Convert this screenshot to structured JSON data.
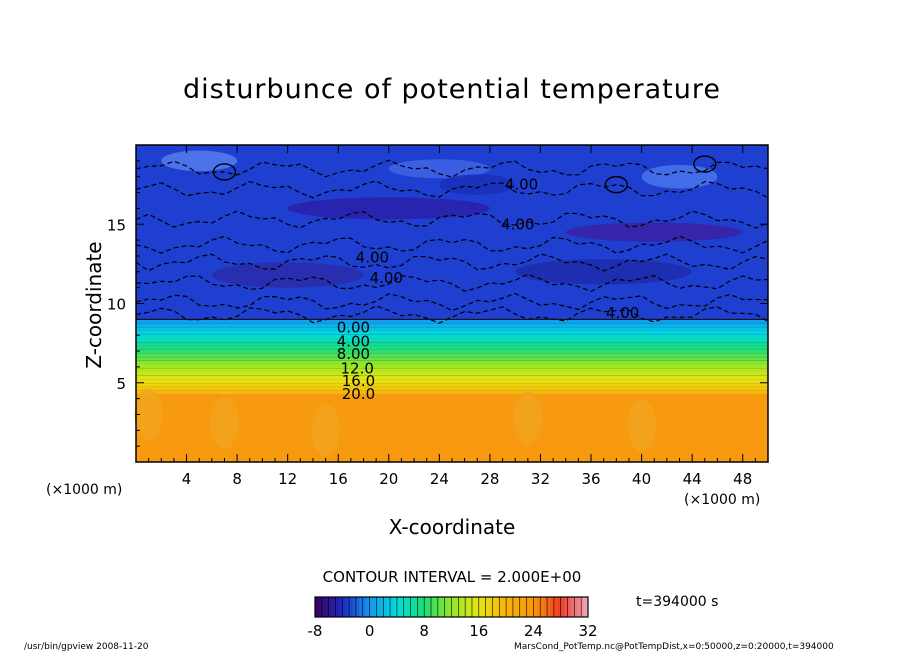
{
  "chart_data": {
    "type": "heatmap",
    "title": "disturbunce of potential temperature",
    "xlabel": "X-coordinate",
    "ylabel": "Z-coordinate",
    "x_unit": "(×1000 m)",
    "y_unit": "(×1000 m)",
    "xlim": [
      0,
      50
    ],
    "ylim": [
      0,
      20
    ],
    "x_ticks": [
      4,
      8,
      12,
      16,
      20,
      24,
      28,
      32,
      36,
      40,
      44,
      48
    ],
    "y_ticks": [
      5,
      10,
      15
    ],
    "contour_interval": "CONTOUR INTERVAL = 2.000E+00",
    "contour_labels": [
      "0.00",
      "4.00",
      "8.00",
      "12.0",
      "16.0",
      "20.0",
      "-4.00"
    ],
    "colorbar": {
      "min": -8,
      "max": 32,
      "ticks": [
        -8,
        0,
        8,
        16,
        24,
        32
      ]
    },
    "layers": [
      {
        "z_top": 20,
        "z_bottom": 9,
        "value": -4
      },
      {
        "z_top": 9,
        "z_bottom": 4.3,
        "value_top": 0,
        "value_bottom": 20
      },
      {
        "z_top": 4.3,
        "z_bottom": 0,
        "value": 24
      }
    ]
  },
  "time_label": "t=394000 s",
  "footer_left": "/usr/bin/gpview   2008-11-20",
  "footer_right": "MarsCond_PotTemp.nc@PotTempDist,x=0:50000,z=0:20000,t=394000"
}
